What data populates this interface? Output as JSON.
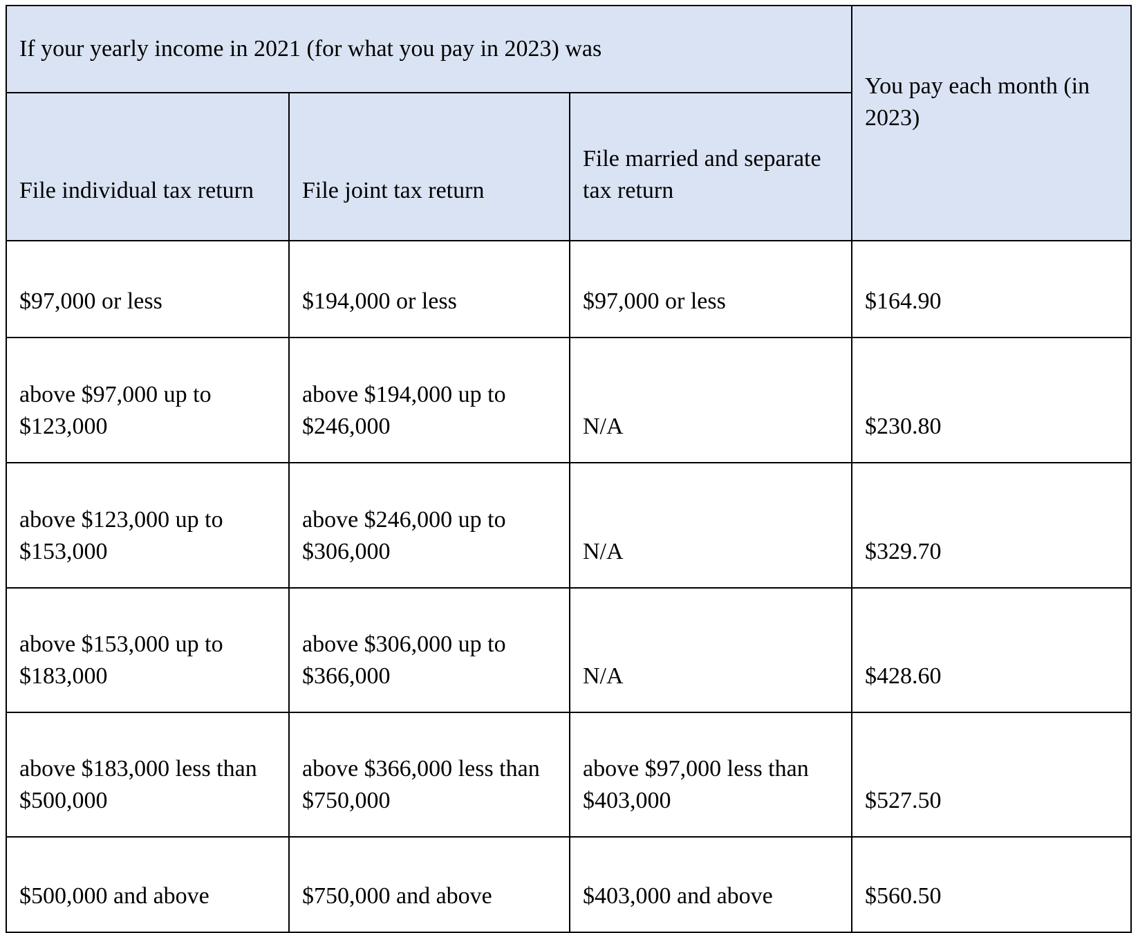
{
  "header": {
    "group_title": "If your yearly income in 2021 (for what you pay in 2023) was",
    "columns": [
      "File individual tax return",
      "File joint tax return",
      "File married and separate tax return"
    ],
    "pay_column": "You pay each month (in 2023)"
  },
  "rows": [
    [
      "$97,000 or less",
      "$194,000 or less",
      "$97,000 or less",
      "$164.90"
    ],
    [
      "above $97,000 up to $123,000",
      "above $194,000 up to $246,000",
      "N/A",
      "$230.80"
    ],
    [
      "above $123,000 up to $153,000",
      "above $246,000 up to $306,000",
      "N/A",
      "$329.70"
    ],
    [
      "above $153,000 up to $183,000",
      "above $306,000 up to $366,000",
      "N/A",
      "$428.60"
    ],
    [
      "above $183,000 less than $500,000",
      "above $366,000 less than $750,000",
      "above $97,000 less than $403,000",
      "$527.50"
    ],
    [
      "$500,000 and above",
      "$750,000 and above",
      "$403,000 and above",
      "$560.50"
    ]
  ],
  "colors": {
    "header_bg": "#dae3f3",
    "border": "#000000"
  }
}
